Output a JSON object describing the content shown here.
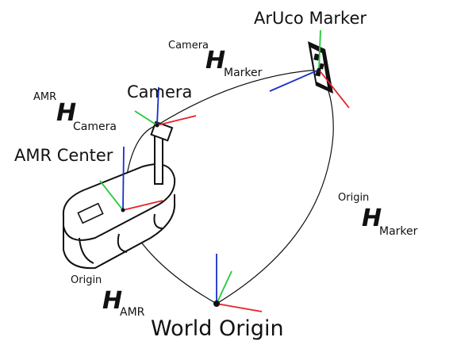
{
  "labels": {
    "aruco_marker": "ArUco Marker",
    "camera": "Camera",
    "amr_center": "AMR Center",
    "world_origin": "World Origin"
  },
  "transforms": {
    "camera_h_marker": {
      "sup": "Camera",
      "sym": "H",
      "sub": "Marker"
    },
    "amr_h_camera": {
      "sup": "AMR",
      "sym": "H",
      "sub": "Camera"
    },
    "origin_h_marker": {
      "sup": "Origin",
      "sym": "H",
      "sub": "Marker"
    },
    "origin_h_amr": {
      "sup": "Origin",
      "sym": "H",
      "sub": "AMR"
    }
  },
  "axis_colors": {
    "x": "#e8202a",
    "y": "#22c93a",
    "z": "#1a2fc9"
  }
}
